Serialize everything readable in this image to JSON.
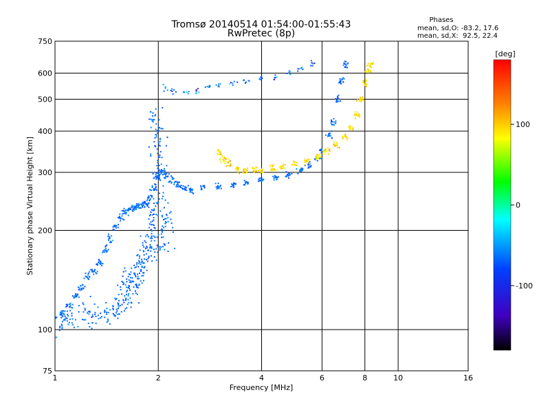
{
  "chart_data": {
    "type": "scatter",
    "title": "Tromsø 20140514 01:54:00-01:55:43",
    "subtitle": "RwPretec (8p)",
    "xlabel": "Frequency [MHz]",
    "ylabel": "Stationary phase Virtual Height [km]",
    "x_scale": "log",
    "y_scale": "log",
    "xlim": [
      1,
      16
    ],
    "ylim": [
      75,
      750
    ],
    "x_ticks": [
      "1",
      "2",
      "4",
      "6",
      "8",
      "10",
      "16"
    ],
    "y_ticks": [
      "75",
      "100",
      "200",
      "300",
      "400",
      "500",
      "600",
      "750"
    ],
    "grid": true,
    "stats": {
      "heading": "Phases",
      "line_o": "mean, sd,O: -83.2, 17.6",
      "line_x": "mean, sd,X:  92.5, 22.4"
    },
    "colorbar": {
      "label": "[deg]",
      "range": [
        -180,
        180
      ],
      "ticks": [
        "100",
        "0",
        "-100"
      ],
      "tick_values": [
        100,
        0,
        -100
      ],
      "colormap": "rainbow"
    },
    "series": [
      {
        "mode": "O",
        "phase_mean": -83.2,
        "phase_sd": 17.6,
        "trace_points": [
          [
            1.0,
            108
          ],
          [
            1.05,
            112
          ],
          [
            1.1,
            118
          ],
          [
            1.15,
            126
          ],
          [
            1.2,
            134
          ],
          [
            1.25,
            145
          ],
          [
            1.3,
            150
          ],
          [
            1.35,
            160
          ],
          [
            1.4,
            175
          ],
          [
            1.45,
            190
          ],
          [
            1.5,
            205
          ],
          [
            1.55,
            218
          ],
          [
            1.6,
            228
          ],
          [
            1.65,
            232
          ],
          [
            1.7,
            234
          ],
          [
            1.75,
            236
          ],
          [
            1.8,
            238
          ],
          [
            1.85,
            240
          ],
          [
            1.9,
            250
          ],
          [
            1.95,
            270
          ],
          [
            2.0,
            290
          ],
          [
            2.05,
            300
          ],
          [
            2.1,
            295
          ],
          [
            2.2,
            285
          ],
          [
            2.3,
            275
          ],
          [
            2.4,
            268
          ],
          [
            2.5,
            265
          ],
          [
            2.7,
            268
          ],
          [
            3.0,
            272
          ],
          [
            3.3,
            276
          ],
          [
            3.6,
            280
          ],
          [
            4.0,
            285
          ],
          [
            4.4,
            290
          ],
          [
            4.8,
            295
          ],
          [
            5.2,
            305
          ],
          [
            5.5,
            315
          ],
          [
            5.8,
            330
          ],
          [
            6.0,
            350
          ],
          [
            6.3,
            390
          ],
          [
            6.5,
            430
          ],
          [
            6.7,
            500
          ],
          [
            6.85,
            570
          ],
          [
            7.0,
            640
          ]
        ],
        "spread_points": [
          [
            1.05,
            105
          ],
          [
            1.1,
            108
          ],
          [
            1.2,
            110
          ],
          [
            1.3,
            112
          ],
          [
            1.4,
            110
          ],
          [
            1.5,
            115
          ],
          [
            1.55,
            120
          ],
          [
            1.6,
            125
          ],
          [
            1.65,
            135
          ],
          [
            1.7,
            145
          ],
          [
            1.75,
            155
          ],
          [
            1.8,
            165
          ],
          [
            1.85,
            180
          ],
          [
            1.9,
            195
          ],
          [
            1.95,
            215
          ],
          [
            2.0,
            240
          ],
          [
            1.98,
            280
          ],
          [
            2.0,
            320
          ],
          [
            1.97,
            360
          ],
          [
            2.0,
            400
          ],
          [
            1.95,
            450
          ],
          [
            1.7,
            130
          ],
          [
            1.6,
            140
          ],
          [
            1.8,
            150
          ],
          [
            1.9,
            170
          ],
          [
            2.05,
            180
          ],
          [
            2.1,
            200
          ],
          [
            2.1,
            225
          ]
        ],
        "upper_points": [
          [
            2.1,
            540
          ],
          [
            2.2,
            530
          ],
          [
            2.4,
            525
          ],
          [
            2.6,
            530
          ],
          [
            2.8,
            545
          ],
          [
            3.0,
            550
          ],
          [
            3.3,
            560
          ],
          [
            3.6,
            565
          ],
          [
            4.0,
            575
          ],
          [
            4.4,
            585
          ],
          [
            4.8,
            600
          ],
          [
            5.2,
            620
          ],
          [
            5.6,
            640
          ]
        ]
      },
      {
        "mode": "X",
        "phase_mean": 92.5,
        "phase_sd": 22.4,
        "trace_points": [
          [
            3.0,
            345
          ],
          [
            3.1,
            330
          ],
          [
            3.2,
            318
          ],
          [
            3.4,
            308
          ],
          [
            3.6,
            305
          ],
          [
            3.8,
            305
          ],
          [
            4.0,
            306
          ],
          [
            4.3,
            308
          ],
          [
            4.6,
            312
          ],
          [
            5.0,
            318
          ],
          [
            5.4,
            325
          ],
          [
            5.8,
            335
          ],
          [
            6.2,
            348
          ],
          [
            6.6,
            365
          ],
          [
            7.0,
            385
          ],
          [
            7.3,
            410
          ],
          [
            7.6,
            450
          ],
          [
            7.8,
            500
          ],
          [
            8.0,
            560
          ],
          [
            8.2,
            610
          ],
          [
            8.3,
            640
          ]
        ]
      }
    ]
  }
}
